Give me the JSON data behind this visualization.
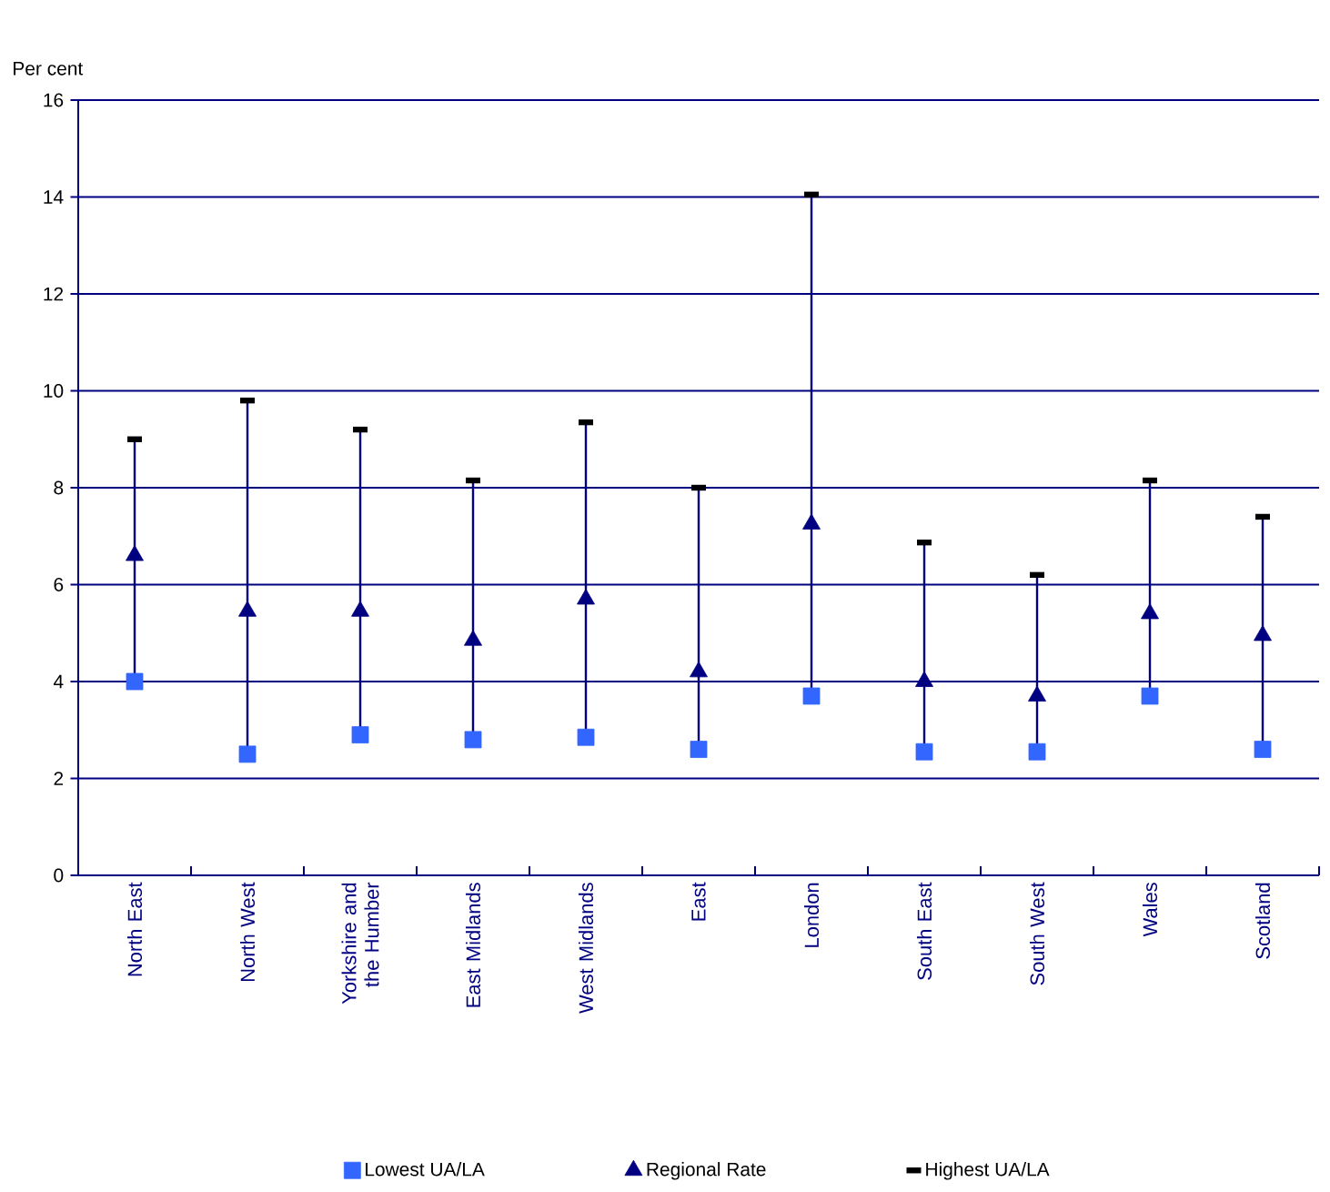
{
  "chart_data": {
    "type": "scatter",
    "ylabel": "Per cent",
    "categories": [
      "North East",
      "North West",
      "Yorkshire and the Humber",
      "East Midlands",
      "West Midlands",
      "East",
      "London",
      "South East",
      "South West",
      "Wales",
      "Scotland"
    ],
    "series": [
      {
        "name": "Lowest UA/LA",
        "color": "#3366ff",
        "marker": "square",
        "values": [
          4.0,
          2.5,
          2.9,
          2.8,
          2.85,
          2.6,
          3.7,
          2.55,
          2.55,
          3.7,
          2.6
        ]
      },
      {
        "name": "Regional Rate",
        "color": "#000080",
        "marker": "triangle",
        "values": [
          6.6,
          5.45,
          5.45,
          4.85,
          5.7,
          4.2,
          7.25,
          4.0,
          3.7,
          5.4,
          4.95
        ]
      },
      {
        "name": "Highest UA/LA",
        "color": "#000000",
        "values": [
          9.0,
          9.8,
          9.2,
          8.15,
          9.35,
          8.0,
          14.05,
          6.87,
          6.2,
          8.15,
          7.4
        ]
      }
    ],
    "ylim": [
      0,
      16
    ],
    "yticks": [
      0,
      2,
      4,
      6,
      8,
      10,
      12,
      14,
      16
    ],
    "grid": "y",
    "legend": "bottom"
  }
}
